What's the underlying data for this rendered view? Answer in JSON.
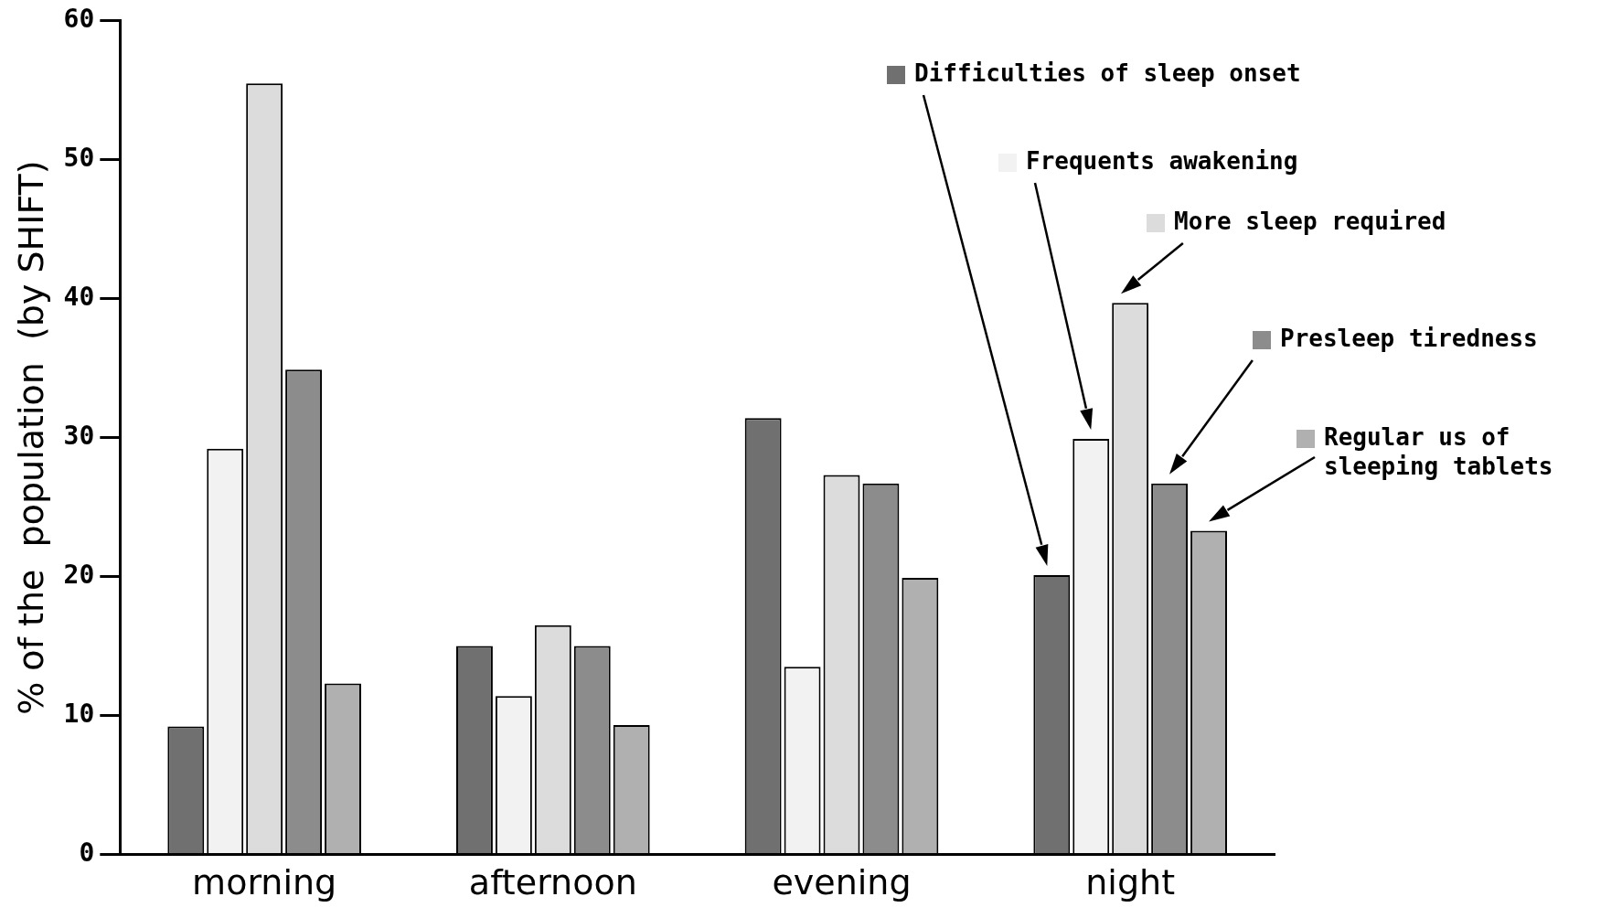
{
  "chart_data": {
    "type": "bar",
    "ylabel": "% of the  population  (by SHIFT)",
    "categories": [
      "morning",
      "afternoon",
      "evening",
      "night"
    ],
    "ylim": [
      0,
      60
    ],
    "yticks": [
      0,
      10,
      20,
      30,
      40,
      50,
      60
    ],
    "legend": "top right",
    "series": [
      {
        "name": "Difficulties of sleep onset",
        "color": "#707070",
        "values": [
          9.2,
          15.0,
          31.4,
          20.1
        ]
      },
      {
        "name": "Frequents awakening",
        "color": "#f2f2f2",
        "values": [
          29.2,
          11.4,
          13.5,
          29.9
        ]
      },
      {
        "name": "More sleep required",
        "color": "#dcdcdc",
        "values": [
          55.5,
          16.5,
          27.3,
          39.7
        ]
      },
      {
        "name": "Presleep tiredness",
        "color": "#8c8c8c",
        "values": [
          34.9,
          15.0,
          26.7,
          26.7
        ]
      },
      {
        "name": "Regular us of sleeping tablets",
        "color": "#b0b0b0",
        "values": [
          12.3,
          9.3,
          19.9,
          23.3
        ]
      }
    ]
  }
}
